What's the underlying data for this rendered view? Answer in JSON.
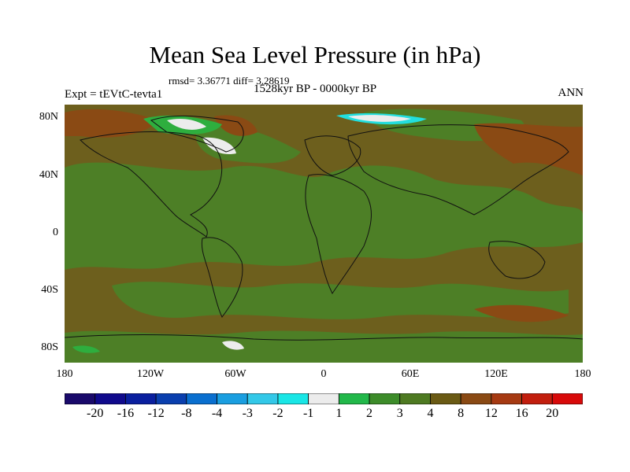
{
  "title": "Mean Sea Level Pressure (in hPa)",
  "stats": "rmsd= 3.36771 diff= 3.28619",
  "period": "1528kyr BP - 0000kyr BP",
  "experiment": "Expt = tEVtC-tevta1",
  "season": "ANN",
  "lat_labels": [
    "80N",
    "40N",
    "0",
    "40S",
    "80S"
  ],
  "lon_labels": [
    "180",
    "120W",
    "60W",
    "0",
    "60E",
    "120E",
    "180"
  ],
  "colorbar": {
    "labels": [
      "-20",
      "-16",
      "-12",
      "-8",
      "-4",
      "-3",
      "-2",
      "-1",
      "1",
      "2",
      "3",
      "4",
      "8",
      "12",
      "16",
      "20"
    ],
    "colors": [
      "#1a0a6b",
      "#100a8c",
      "#0a1f9e",
      "#0a3fae",
      "#0a6fcf",
      "#1a9ee0",
      "#33c8e8",
      "#19e6e6",
      "#ececec",
      "#22b84a",
      "#3d8c2a",
      "#4e7a22",
      "#6a5a14",
      "#8a4a14",
      "#a63a12",
      "#c21e0e",
      "#d80a0a"
    ]
  },
  "palette": {
    "ocean_base": "#6d5f1d",
    "land_green": "#4d7f26",
    "bright_green": "#2eae3e",
    "cyan": "#22dede",
    "white": "#ececec",
    "brown": "#8a4a14"
  }
}
